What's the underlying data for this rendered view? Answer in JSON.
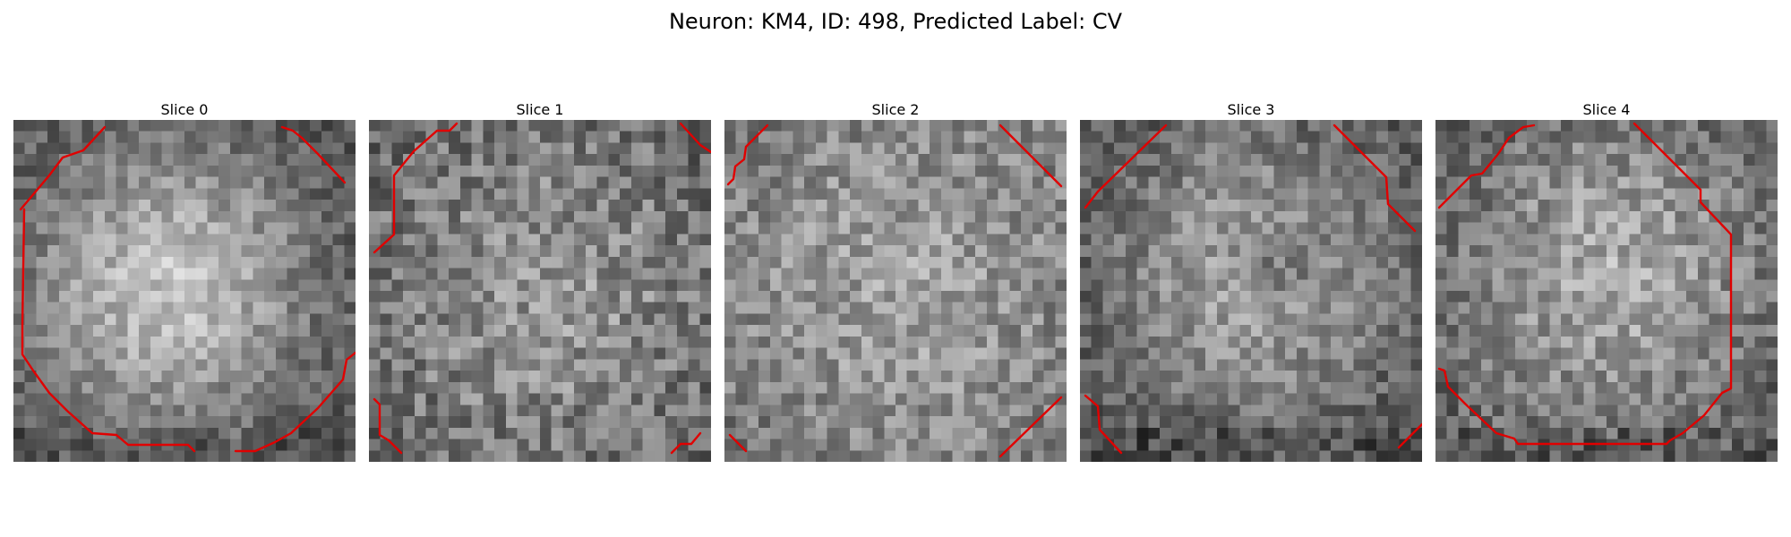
{
  "figure": {
    "title": "Neuron: KM4, ID: 498, Predicted Label: CV"
  },
  "slices": [
    {
      "label": "Slice 0",
      "image": "grayscale-neuron-patch",
      "contour_color": "#e00000"
    },
    {
      "label": "Slice 1",
      "image": "grayscale-neuron-patch",
      "contour_color": "#e00000"
    },
    {
      "label": "Slice 2",
      "image": "grayscale-neuron-patch",
      "contour_color": "#e00000"
    },
    {
      "label": "Slice 3",
      "image": "grayscale-neuron-patch",
      "contour_color": "#e00000"
    },
    {
      "label": "Slice 4",
      "image": "grayscale-neuron-patch",
      "contour_color": "#e00000"
    }
  ]
}
